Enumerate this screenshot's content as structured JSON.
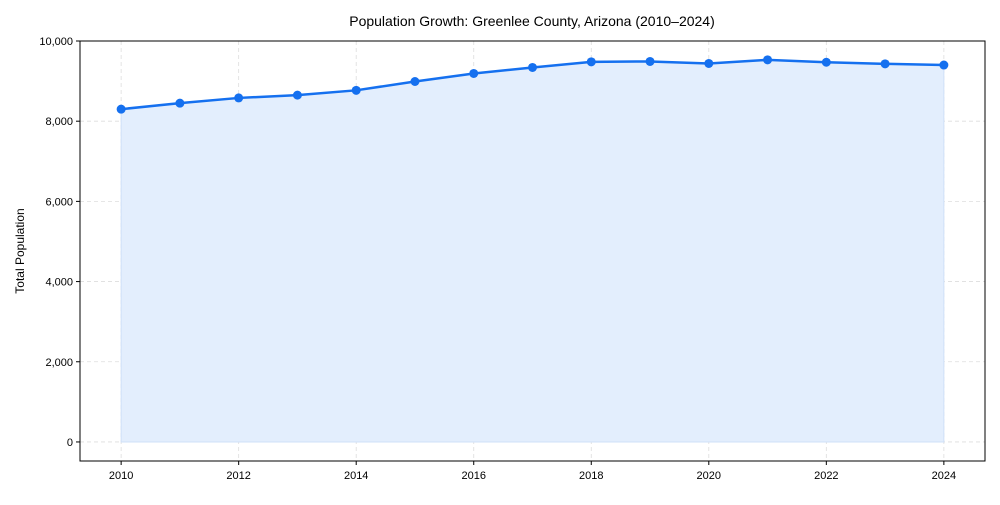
{
  "chart_data": {
    "type": "area",
    "title": "Population Growth: Greenlee County, Arizona (2010–2024)",
    "xlabel": "",
    "ylabel": "Total Population",
    "x": [
      2010,
      2011,
      2012,
      2013,
      2014,
      2015,
      2016,
      2017,
      2018,
      2019,
      2020,
      2021,
      2022,
      2023,
      2024
    ],
    "series": [
      {
        "name": "Total Population",
        "values": [
          8300,
          8450,
          8580,
          8650,
          8770,
          8990,
          9190,
          9340,
          9480,
          9490,
          9440,
          9530,
          9470,
          9430,
          9400
        ]
      }
    ],
    "xticks": [
      "2010",
      "2012",
      "2014",
      "2016",
      "2018",
      "2020",
      "2022",
      "2024"
    ],
    "yticks": [
      "0",
      "2,000",
      "4,000",
      "6,000",
      "8,000",
      "10,000"
    ],
    "ytick_values": [
      0,
      2000,
      4000,
      6000,
      8000,
      10000
    ],
    "xtick_values": [
      2010,
      2012,
      2014,
      2016,
      2018,
      2020,
      2022,
      2024
    ],
    "xlim": [
      2009.3,
      2024.7
    ],
    "ylim": [
      -475,
      10000
    ],
    "grid": true,
    "colors": {
      "line": "#1570EF",
      "fill": "#E3EEFD",
      "grid": "#DDDDDD"
    }
  }
}
